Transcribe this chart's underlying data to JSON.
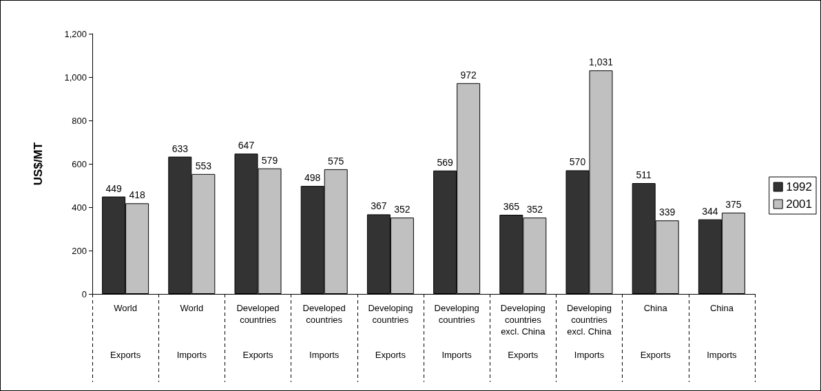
{
  "chart_data": {
    "type": "bar",
    "ylabel": "US$/MT",
    "categories": [
      "World\nExports",
      "World\nImports",
      "Developed\ncountries\nExports",
      "Developed\ncountries\nImports",
      "Developing\ncountries\nExports",
      "Developing\ncountries\nImports",
      "Developing\ncountries\nexcl. China\nExports",
      "Developing\ncountries\nexcl. China\nImports",
      "China\nExports",
      "China\nImports"
    ],
    "series": [
      {
        "name": "1992",
        "color": "#333333",
        "values": [
          449,
          633,
          647,
          498,
          367,
          569,
          365,
          570,
          511,
          344
        ],
        "value_labels": [
          "449",
          "633",
          "647",
          "498",
          "367",
          "569",
          "365",
          "570",
          "511",
          "344"
        ]
      },
      {
        "name": "2001",
        "color": "#c0c0c0",
        "values": [
          418,
          553,
          579,
          575,
          352,
          972,
          352,
          1031,
          339,
          375
        ],
        "value_labels": [
          "418",
          "553",
          "579",
          "575",
          "352",
          "972",
          "352",
          "1,031",
          "339",
          "375"
        ]
      }
    ],
    "ylim": [
      0,
      1200
    ],
    "yticks": [
      0,
      200,
      400,
      600,
      800,
      {
        "value": 1000,
        "label": "1,000"
      },
      {
        "value": 1200,
        "label": "1,200"
      }
    ],
    "grid": false,
    "legend": "right"
  }
}
